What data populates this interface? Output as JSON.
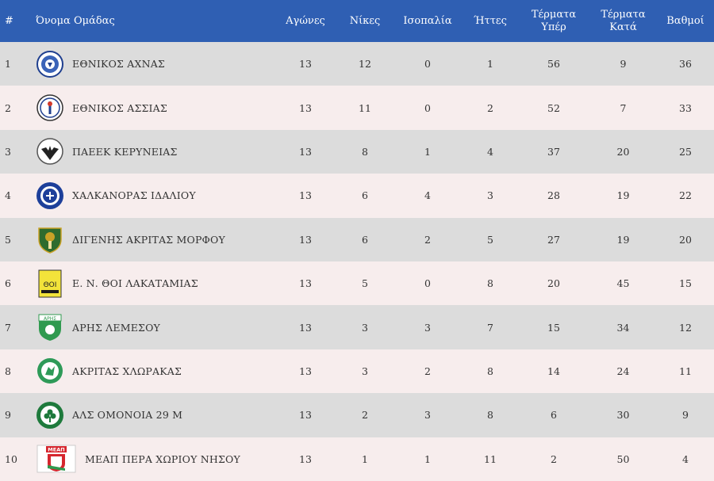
{
  "headers": {
    "rank": "#",
    "team": "Όνομα Ομάδας",
    "played": "Αγώνες",
    "wins": "Νίκες",
    "draws": "Ισοπαλία",
    "losses": "Ήττες",
    "goals_for_1": "Τέρματα",
    "goals_for_2": "Υπέρ",
    "goals_against_1": "Τέρματα",
    "goals_against_2": "Κατά",
    "points": "Βαθμοί"
  },
  "rows": [
    {
      "rank": "1",
      "team": "ΕΘΝΙΚΟΣ ΑΧΝΑΣ",
      "logo": "ethnikos-achnas-crest-icon",
      "played": "13",
      "wins": "12",
      "draws": "0",
      "losses": "1",
      "gf": "56",
      "ga": "9",
      "pts": "36"
    },
    {
      "rank": "2",
      "team": "ΕΘΝΙΚΟΣ ΑΣΣΙΑΣ",
      "logo": "ethnikos-assias-crest-icon",
      "played": "13",
      "wins": "11",
      "draws": "0",
      "losses": "2",
      "gf": "52",
      "ga": "7",
      "pts": "33"
    },
    {
      "rank": "3",
      "team": "ΠΑΕΕΚ ΚΕΡΥΝΕΙΑΣ",
      "logo": "paeek-crest-icon",
      "played": "13",
      "wins": "8",
      "draws": "1",
      "losses": "4",
      "gf": "37",
      "ga": "20",
      "pts": "25"
    },
    {
      "rank": "4",
      "team": "ΧΑΛΚΑΝΟΡΑΣ ΙΔΑΛΙΟΥ",
      "logo": "chalkanoras-crest-icon",
      "played": "13",
      "wins": "6",
      "draws": "4",
      "losses": "3",
      "gf": "28",
      "ga": "19",
      "pts": "22"
    },
    {
      "rank": "5",
      "team": "ΔΙΓΕΝΗΣ ΑΚΡΙΤΑΣ ΜΟΡΦΟΥ",
      "logo": "digenis-crest-icon",
      "played": "13",
      "wins": "6",
      "draws": "2",
      "losses": "5",
      "gf": "27",
      "ga": "19",
      "pts": "20"
    },
    {
      "rank": "6",
      "team": "Ε. Ν. ΘΟΙ ΛΑΚΑΤΑΜΙΑΣ",
      "logo": "thoi-crest-icon",
      "played": "13",
      "wins": "5",
      "draws": "0",
      "losses": "8",
      "gf": "20",
      "ga": "45",
      "pts": "15"
    },
    {
      "rank": "7",
      "team": "ΑΡΗΣ ΛΕΜΕΣΟΥ",
      "logo": "aris-crest-icon",
      "played": "13",
      "wins": "3",
      "draws": "3",
      "losses": "7",
      "gf": "15",
      "ga": "34",
      "pts": "12"
    },
    {
      "rank": "8",
      "team": "ΑΚΡΙΤΑΣ ΧΛΩΡΑΚΑΣ",
      "logo": "akritas-crest-icon",
      "played": "13",
      "wins": "3",
      "draws": "2",
      "losses": "8",
      "gf": "14",
      "ga": "24",
      "pts": "11"
    },
    {
      "rank": "9",
      "team": "ΑΛΣ ΟΜΟΝΟΙΑ 29 Μ",
      "logo": "omonoia-crest-icon",
      "played": "13",
      "wins": "2",
      "draws": "3",
      "losses": "8",
      "gf": "6",
      "ga": "30",
      "pts": "9"
    },
    {
      "rank": "10",
      "team": "ΜΕΑΠ ΠΕΡΑ ΧΩΡΙΟΥ ΝΗΣΟΥ",
      "logo": "meap-crest-icon",
      "played": "13",
      "wins": "1",
      "draws": "1",
      "losses": "11",
      "gf": "2",
      "ga": "50",
      "pts": "4"
    }
  ],
  "logo_texts": {
    "thoi": "ΘΟΙ",
    "aris": "ΑΡΗΣ",
    "meap": "ΜΕΑΠ"
  },
  "colors": {
    "header_bg": "#2f5fb3",
    "row_odd": "#dcdcdc",
    "row_even": "#f7eded"
  }
}
